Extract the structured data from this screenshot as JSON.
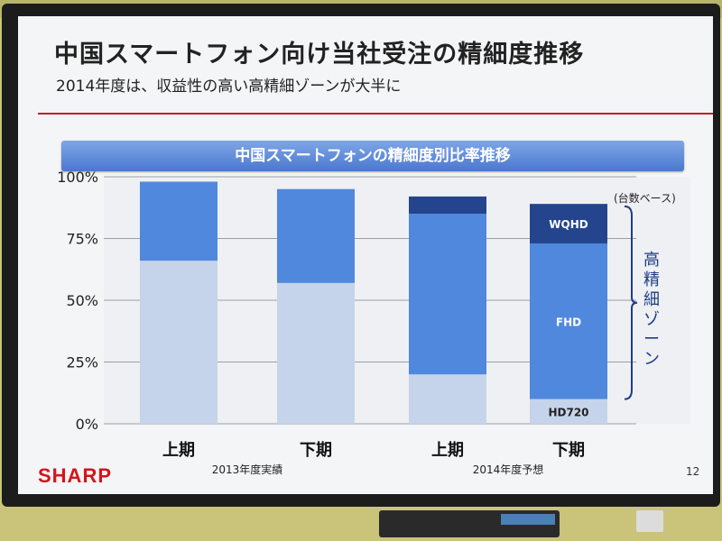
{
  "slide": {
    "title": "中国スマートフォン向け当社受注の精細度推移",
    "subtitle": "2014年度は、収益性の高い高精細ゾーンが大半に",
    "banner": "中国スマートフォンの精細度別比率推移",
    "logo": "SHARP",
    "page_number": "12"
  },
  "colors": {
    "hd720": "#c5d4ea",
    "fhd": "#4f88dc",
    "wqhd": "#24458e",
    "accent_red": "#c0202a"
  },
  "chart_data": {
    "type": "bar",
    "stacked": true,
    "categories": [
      "上期",
      "下期",
      "上期",
      "下期"
    ],
    "groups": [
      {
        "label": "2013年度実績",
        "categories": [
          0,
          1
        ]
      },
      {
        "label": "2014年度予想",
        "categories": [
          2,
          3
        ]
      }
    ],
    "series": [
      {
        "name": "HD720",
        "values": [
          66,
          57,
          20,
          10
        ]
      },
      {
        "name": "FHD",
        "values": [
          32,
          38,
          65,
          63
        ]
      },
      {
        "name": "WQHD",
        "values": [
          0,
          0,
          7,
          16
        ]
      }
    ],
    "ylim": [
      0,
      100
    ],
    "yticks": [
      "0%",
      "25%",
      "50%",
      "75%",
      "100%"
    ],
    "grid": true,
    "note": "(台数ベース)",
    "bracket_label": "高精細ゾーン"
  }
}
